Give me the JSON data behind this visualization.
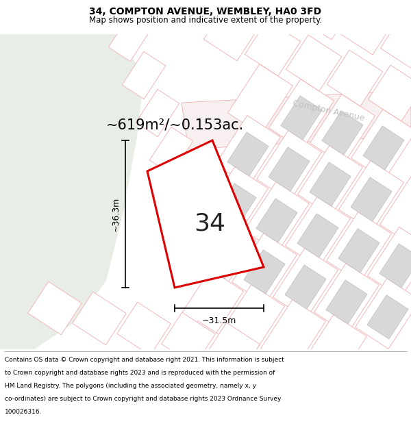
{
  "title": "34, COMPTON AVENUE, WEMBLEY, HA0 3FD",
  "subtitle": "Map shows position and indicative extent of the property.",
  "area_text": "~619m²/~0.153ac.",
  "width_label": "~31.5m",
  "height_label": "~36.3m",
  "number_label": "34",
  "street_label": "Compton Avenue",
  "footer_lines": [
    "Contains OS data © Crown copyright and database right 2021. This information is subject",
    "to Crown copyright and database rights 2023 and is reproduced with the permission of",
    "HM Land Registry. The polygons (including the associated geometry, namely x, y",
    "co-ordinates) are subject to Crown copyright and database rights 2023 Ordnance Survey",
    "100026316."
  ],
  "bg_map_color": "#f0f0ee",
  "bg_green_color": "#e8ede6",
  "plot_fill_color": "#ffffff",
  "plot_border_color": "#dd0000",
  "road_color": "#f8f0f0",
  "road_border_color": "#e8b0b0",
  "cadastral_line_color": "#f0b8b8",
  "building_color": "#d8d8d8",
  "building_border_color": "#c8c0c0",
  "title_fontsize": 10,
  "subtitle_fontsize": 8.5,
  "area_fontsize": 15,
  "label_fontsize": 9,
  "number_fontsize": 26,
  "street_fontsize": 9,
  "footer_fontsize": 6.5
}
